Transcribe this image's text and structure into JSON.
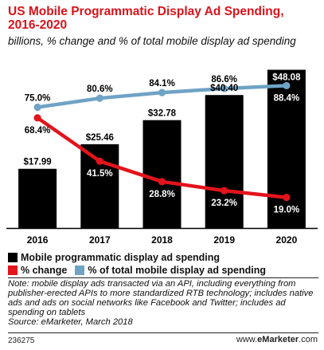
{
  "header": {
    "title": "US Mobile Programmatic Display Ad Spending, 2016-2020",
    "subtitle": "billions, % change and % of total mobile display ad spending"
  },
  "legend": {
    "bars": "Mobile programmatic display ad spending",
    "change": "% change",
    "share": "% of total mobile display ad spending"
  },
  "note": "Note: mobile display ads transacted via an API, including everything from publisher-erected APIs to more standardized RTB technology; includes native ads and ads on social networks like Facebook and Twitter; includes ad spending on tablets\nSource: eMarketer, March 2018",
  "footer": {
    "id": "236275",
    "brand_prefix": "www.",
    "brand_bold": "eMarketer",
    "brand_suffix": ".com"
  },
  "colors": {
    "bar": "#000000",
    "change_line": "#e3141b",
    "share_line": "#6fa3c5",
    "title": "#d9131a"
  },
  "chart_data": {
    "type": "bar",
    "categories": [
      "2016",
      "2017",
      "2018",
      "2019",
      "2020"
    ],
    "bar_series": {
      "name": "Mobile programmatic display ad spending",
      "values": [
        17.99,
        25.46,
        32.78,
        40.4,
        48.08
      ],
      "labels": [
        "$17.99",
        "$25.46",
        "$32.78",
        "$40.40",
        "$48.08"
      ]
    },
    "line_series": [
      {
        "name": "% change",
        "values": [
          68.4,
          41.5,
          28.8,
          23.2,
          19.0
        ],
        "labels": [
          "68.4%",
          "41.5%",
          "28.8%",
          "23.2%",
          "19.0%"
        ]
      },
      {
        "name": "% of total mobile display ad spending",
        "values": [
          75.0,
          80.6,
          84.1,
          86.6,
          88.4
        ],
        "labels": [
          "75.0%",
          "80.6%",
          "84.1%",
          "86.6%",
          "88.4%"
        ]
      }
    ],
    "legend_position": "bottom",
    "grid": false
  }
}
